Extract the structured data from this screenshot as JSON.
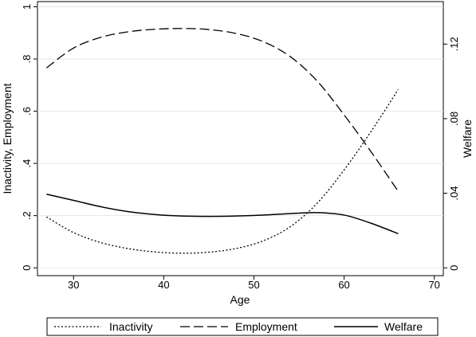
{
  "chart_data": {
    "type": "line",
    "xlabel": "Age",
    "ylabel_left": "Inactivity, Employment",
    "ylabel_right": "Welfare",
    "x_range": [
      26,
      71
    ],
    "y_left_range": [
      -0.03,
      1.02
    ],
    "y_right_range": [
      -0.0042,
      0.1428
    ],
    "x_ticks": [
      30,
      40,
      50,
      60,
      70
    ],
    "x_tick_labels": [
      "30",
      "40",
      "50",
      "60",
      "70"
    ],
    "y_left_ticks": [
      0,
      0.2,
      0.4,
      0.6,
      0.8,
      1
    ],
    "y_left_tick_labels": [
      "0",
      ".2",
      ".4",
      ".6",
      ".8",
      "1"
    ],
    "y_right_ticks": [
      0,
      0.04,
      0.08,
      0.12
    ],
    "y_right_tick_labels": [
      "0",
      ".04",
      ".08",
      ".12"
    ],
    "grid": "horizontal",
    "legend_position": "bottom",
    "series": [
      {
        "name": "Inactivity",
        "axis": "left",
        "style": "dotted",
        "x": [
          27,
          30,
          33,
          36,
          39,
          42,
          45,
          48,
          51,
          54,
          57,
          60,
          63,
          66
        ],
        "y": [
          0.195,
          0.135,
          0.097,
          0.074,
          0.061,
          0.056,
          0.06,
          0.074,
          0.103,
          0.157,
          0.247,
          0.375,
          0.523,
          0.683
        ]
      },
      {
        "name": "Employment",
        "axis": "left",
        "style": "long-dash",
        "x": [
          27,
          30,
          33,
          36,
          39,
          42,
          45,
          48,
          51,
          54,
          57,
          60,
          63,
          66
        ],
        "y": [
          0.766,
          0.842,
          0.883,
          0.904,
          0.914,
          0.917,
          0.913,
          0.898,
          0.867,
          0.81,
          0.716,
          0.586,
          0.444,
          0.293
        ]
      },
      {
        "name": "Welfare",
        "axis": "right",
        "style": "solid",
        "x": [
          27,
          30,
          33,
          36,
          39,
          42,
          45,
          48,
          51,
          54,
          57,
          60,
          63,
          66
        ],
        "y": [
          0.0395,
          0.0362,
          0.0328,
          0.0302,
          0.0286,
          0.0278,
          0.0276,
          0.0278,
          0.0283,
          0.0291,
          0.0296,
          0.0283,
          0.0239,
          0.0183
        ]
      }
    ]
  }
}
